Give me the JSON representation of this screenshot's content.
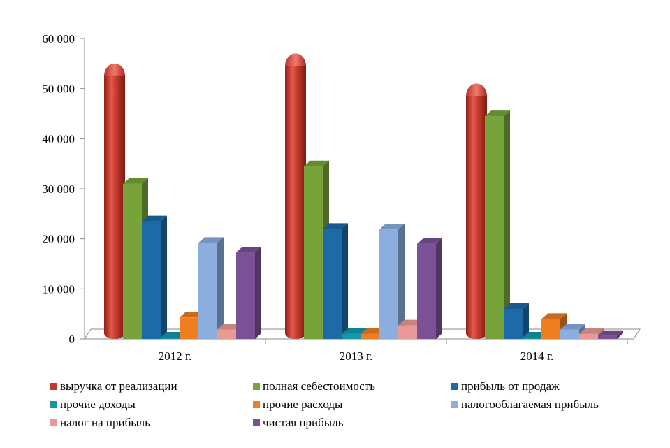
{
  "chart_data": {
    "type": "bar",
    "title": "",
    "xlabel": "",
    "ylabel": "",
    "ylim": [
      0,
      60000
    ],
    "ytick_labels": [
      "0",
      "10 000",
      "20 000",
      "30 000",
      "40 000",
      "50 000",
      "60 000"
    ],
    "categories": [
      "2012 г.",
      "2013 г.",
      "2014 г."
    ],
    "legend_position": "bottom",
    "series": [
      {
        "name": "выручка от реализации",
        "color": "#c0392b",
        "values": [
          52500,
          54500,
          48500
        ]
      },
      {
        "name": "полная себестоимость",
        "color": "#77a33a",
        "values": [
          31000,
          34500,
          44500
        ]
      },
      {
        "name": "прибыль от продаж",
        "color": "#1c6aa8",
        "values": [
          23500,
          22000,
          6000
        ]
      },
      {
        "name": "прочие доходы",
        "color": "#1597a8",
        "values": [
          100,
          1000,
          100
        ]
      },
      {
        "name": "прочие расходы",
        "color": "#ef7d22",
        "values": [
          4300,
          1000,
          4000
        ]
      },
      {
        "name": "налогооблагаемая прибыль",
        "color": "#8caede",
        "values": [
          19200,
          21900,
          1900
        ]
      },
      {
        "name": "налог на прибыль",
        "color": "#e99a96",
        "values": [
          1900,
          2700,
          1000
        ]
      },
      {
        "name": "чистая прибыль",
        "color": "#7b5196",
        "values": [
          17300,
          19000,
          600
        ]
      }
    ]
  }
}
